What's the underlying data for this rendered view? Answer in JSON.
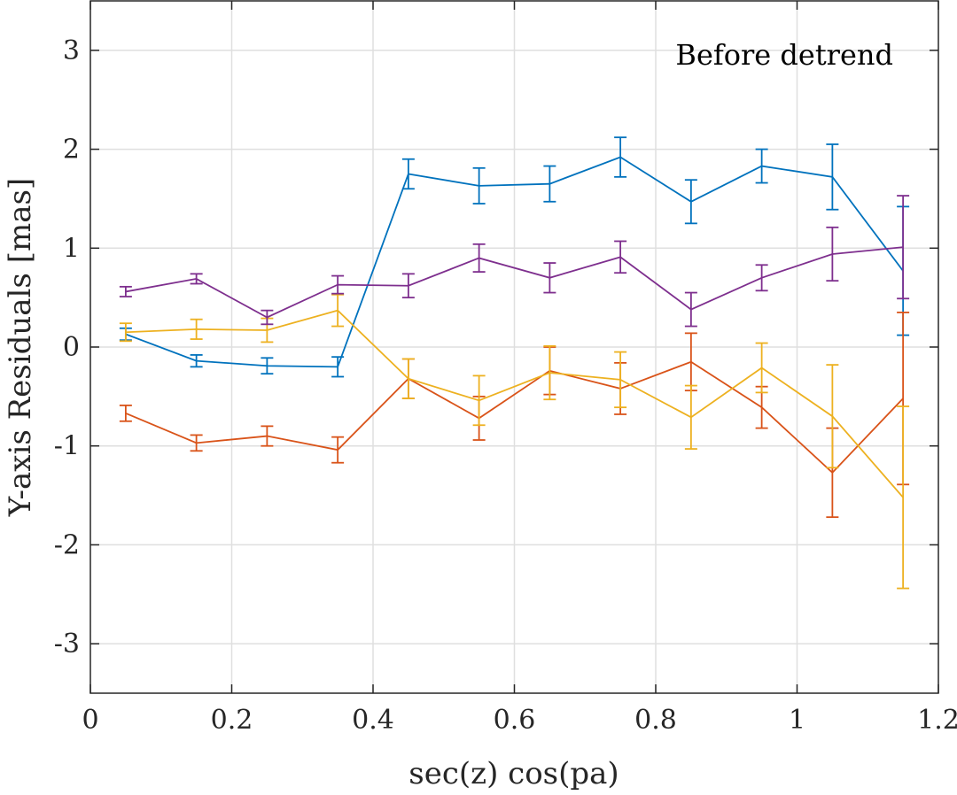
{
  "chart_data": {
    "type": "line",
    "title": "",
    "annotation": "Before detrend",
    "xlabel": "sec(z) cos(pa)",
    "ylabel": "Y-axis Residuals [mas]",
    "xlim": [
      0,
      1.2
    ],
    "ylim": [
      -3.5,
      3.5
    ],
    "grid": true,
    "x_ticks": [
      0,
      0.2,
      0.4,
      0.6,
      0.8,
      1,
      1.2
    ],
    "x_tick_labels": [
      "0",
      "0.2",
      "0.4",
      "0.6",
      "0.8",
      "1",
      "1.2"
    ],
    "y_ticks": [
      -3,
      -2,
      -1,
      0,
      1,
      2,
      3
    ],
    "y_tick_labels": [
      "-3",
      "-2",
      "-1",
      "0",
      "1",
      "2",
      "3"
    ],
    "x": [
      0.05,
      0.15,
      0.25,
      0.35,
      0.45,
      0.55,
      0.65,
      0.75,
      0.85,
      0.95,
      1.05,
      1.15
    ],
    "series": [
      {
        "color": "#0072BD",
        "values": [
          0.13,
          -0.14,
          -0.19,
          -0.2,
          1.75,
          1.63,
          1.65,
          1.92,
          1.47,
          1.83,
          1.72,
          0.77
        ],
        "errors": [
          0.06,
          0.06,
          0.08,
          0.1,
          0.15,
          0.18,
          0.18,
          0.2,
          0.22,
          0.17,
          0.33,
          0.65
        ]
      },
      {
        "color": "#D95319",
        "values": [
          -0.67,
          -0.97,
          -0.9,
          -1.04,
          -0.32,
          -0.72,
          -0.24,
          -0.42,
          -0.15,
          -0.61,
          -1.27,
          -0.52
        ],
        "errors": [
          0.08,
          0.08,
          0.1,
          0.13,
          0.2,
          0.22,
          0.24,
          0.26,
          0.29,
          0.21,
          0.45,
          0.87
        ]
      },
      {
        "color": "#EDB120",
        "values": [
          0.15,
          0.18,
          0.17,
          0.37,
          -0.32,
          -0.54,
          -0.26,
          -0.33,
          -0.71,
          -0.21,
          -0.7,
          -1.52
        ],
        "errors": [
          0.09,
          0.1,
          0.12,
          0.16,
          0.2,
          0.25,
          0.27,
          0.28,
          0.32,
          0.25,
          0.52,
          0.92
        ]
      },
      {
        "color": "#7E2F8E",
        "values": [
          0.56,
          0.69,
          0.3,
          0.63,
          0.62,
          0.9,
          0.7,
          0.91,
          0.38,
          0.7,
          0.94,
          1.01
        ],
        "errors": [
          0.05,
          0.05,
          0.07,
          0.09,
          0.12,
          0.14,
          0.15,
          0.16,
          0.17,
          0.13,
          0.27,
          0.52
        ]
      }
    ]
  }
}
